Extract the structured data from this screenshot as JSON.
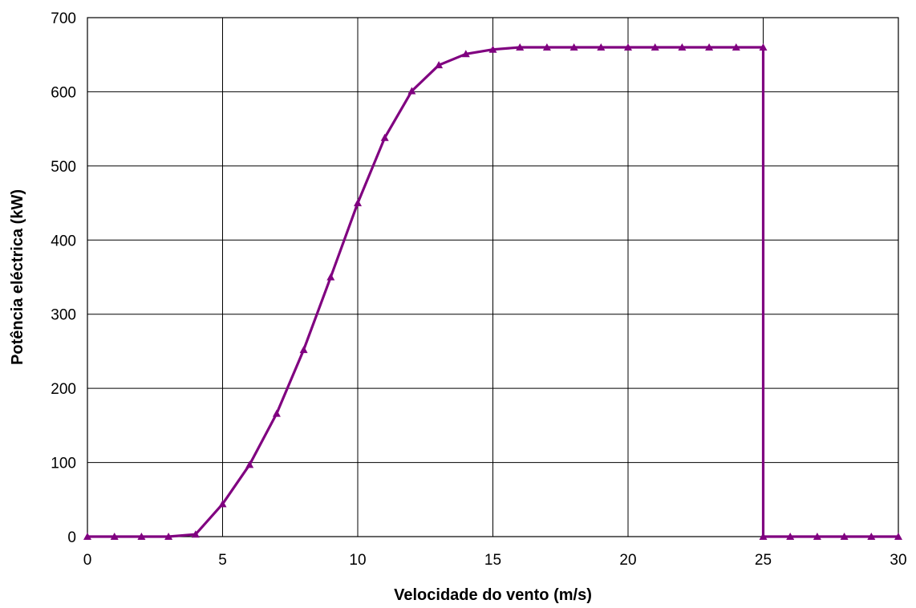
{
  "chart_data": {
    "type": "line",
    "title": "",
    "xlabel": "Velocidade do vento (m/s)",
    "ylabel": "Potência eléctrica (kW)",
    "xlim": [
      0,
      30
    ],
    "ylim": [
      0,
      700
    ],
    "xticks": [
      0,
      5,
      10,
      15,
      20,
      25,
      30
    ],
    "yticks": [
      0,
      100,
      200,
      300,
      400,
      500,
      600,
      700
    ],
    "xtick_labels": [
      "0",
      "5",
      "10",
      "15",
      "20",
      "25",
      "30"
    ],
    "ytick_labels": [
      "0",
      "100",
      "200",
      "300",
      "400",
      "500",
      "600",
      "700"
    ],
    "grid": true,
    "legend": "none",
    "series": [
      {
        "color": "#800080",
        "marker": "triangle",
        "x": [
          0,
          1,
          2,
          3,
          4,
          5,
          6,
          7,
          8,
          9,
          10,
          11,
          12,
          13,
          14,
          15,
          16,
          17,
          18,
          19,
          20,
          21,
          22,
          23,
          24,
          25,
          25,
          26,
          27,
          28,
          29,
          30
        ],
        "y": [
          0,
          0,
          0,
          0,
          3,
          44,
          97,
          166,
          252,
          350,
          450,
          538,
          601,
          636,
          651,
          657,
          660,
          660,
          660,
          660,
          660,
          660,
          660,
          660,
          660,
          660,
          0,
          0,
          0,
          0,
          0,
          0
        ]
      }
    ]
  }
}
